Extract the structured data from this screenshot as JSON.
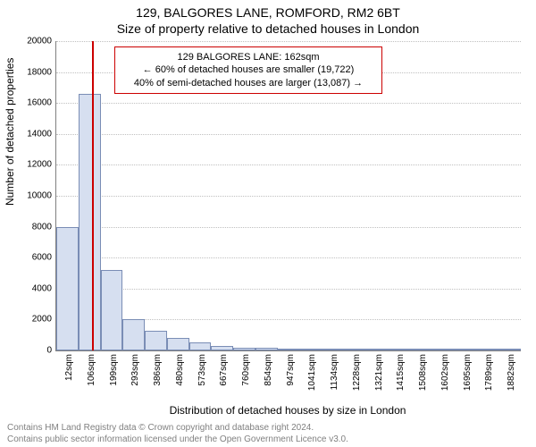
{
  "titles": {
    "line1": "129, BALGORES LANE, ROMFORD, RM2 6BT",
    "line2": "Size of property relative to detached houses in London"
  },
  "axes": {
    "ylabel": "Number of detached properties",
    "xlabel": "Distribution of detached houses by size in London",
    "ylim": [
      0,
      20000
    ],
    "ytick_step": 2000,
    "yticks": [
      0,
      2000,
      4000,
      6000,
      8000,
      10000,
      12000,
      14000,
      16000,
      18000,
      20000
    ]
  },
  "chart": {
    "type": "histogram",
    "bar_fill": "#d6dff0",
    "bar_stroke": "#7a8db5",
    "grid_color": "#c0c0c0",
    "background_color": "#ffffff",
    "axis_color": "#808080",
    "xtick_labels": [
      "12sqm",
      "106sqm",
      "199sqm",
      "293sqm",
      "386sqm",
      "480sqm",
      "573sqm",
      "667sqm",
      "760sqm",
      "854sqm",
      "947sqm",
      "1041sqm",
      "1134sqm",
      "1228sqm",
      "1321sqm",
      "1415sqm",
      "1508sqm",
      "1602sqm",
      "1695sqm",
      "1789sqm",
      "1882sqm"
    ],
    "bar_values": [
      8000,
      16600,
      5200,
      2000,
      1300,
      800,
      500,
      300,
      200,
      150,
      120,
      100,
      80,
      70,
      60,
      50,
      45,
      40,
      35,
      30,
      25
    ]
  },
  "marker": {
    "value_sqm": 162,
    "color": "#cc0000",
    "annotation": {
      "line1": "129 BALGORES LANE: 162sqm",
      "line2": "← 60% of detached houses are smaller (19,722)",
      "line3": "40% of semi-detached houses are larger (13,087) →"
    }
  },
  "footer": {
    "line1": "Contains HM Land Registry data © Crown copyright and database right 2024.",
    "line2": "Contains public sector information licensed under the Open Government Licence v3.0."
  },
  "fonts": {
    "title_size": 14,
    "label_size": 12,
    "tick_size": 10,
    "annotation_size": 11,
    "footer_size": 10
  }
}
